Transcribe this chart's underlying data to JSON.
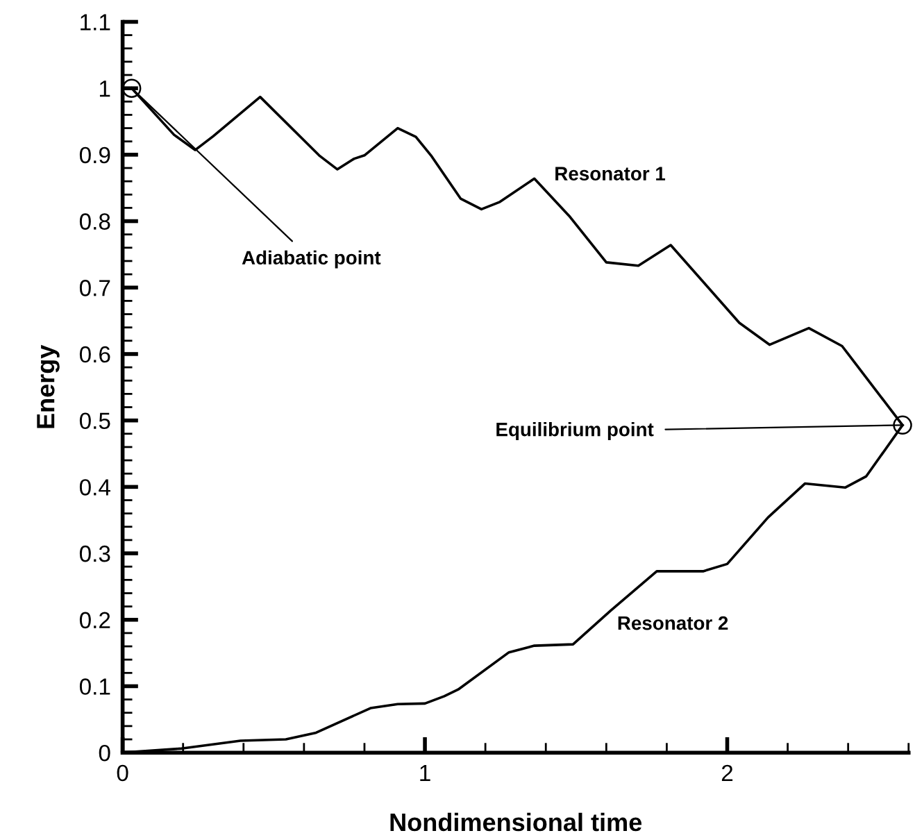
{
  "chart_data": {
    "type": "line",
    "xlabel": "Nondimensional time",
    "ylabel": "Energy",
    "xlim": [
      0,
      2.6
    ],
    "ylim": [
      0,
      1.1
    ],
    "xticks": [
      0,
      1,
      2
    ],
    "yticks": [
      0,
      0.1,
      0.2,
      0.3,
      0.4,
      0.5,
      0.6,
      0.7,
      0.8,
      0.9,
      1,
      1.1
    ],
    "grid": false,
    "legend": false,
    "marker": "none",
    "line_style": "solid",
    "series": [
      {
        "name": "Resonator 1",
        "color": "#000000",
        "x": [
          0.03,
          0.17,
          0.24,
          0.3,
          0.455,
          0.65,
          0.71,
          0.766,
          0.8,
          0.91,
          0.97,
          1.02,
          1.118,
          1.187,
          1.248,
          1.362,
          1.477,
          1.6,
          1.706,
          1.813,
          2.04,
          2.14,
          2.27,
          2.38,
          2.58
        ],
        "values": [
          1.0,
          0.93,
          0.907,
          0.928,
          0.987,
          0.899,
          0.878,
          0.894,
          0.899,
          0.94,
          0.927,
          0.899,
          0.834,
          0.818,
          0.829,
          0.864,
          0.808,
          0.738,
          0.733,
          0.764,
          0.647,
          0.614,
          0.639,
          0.612,
          0.493
        ]
      },
      {
        "name": "Resonator 2",
        "color": "#000000",
        "x": [
          0,
          0.19,
          0.39,
          0.54,
          0.64,
          0.82,
          0.91,
          1.0,
          1.064,
          1.11,
          1.278,
          1.362,
          1.49,
          1.615,
          1.767,
          1.92,
          2.0,
          2.135,
          2.257,
          2.39,
          2.46,
          2.58
        ],
        "values": [
          0,
          0.006,
          0.018,
          0.02,
          0.03,
          0.067,
          0.073,
          0.074,
          0.085,
          0.095,
          0.151,
          0.161,
          0.163,
          0.214,
          0.273,
          0.273,
          0.284,
          0.354,
          0.405,
          0.399,
          0.416,
          0.493
        ]
      }
    ],
    "annotations": [
      {
        "text": "Adiabatic point",
        "x": 0.03,
        "y": 1.0
      },
      {
        "text": "Equilibrium point",
        "x": 2.58,
        "y": 0.493
      }
    ]
  }
}
